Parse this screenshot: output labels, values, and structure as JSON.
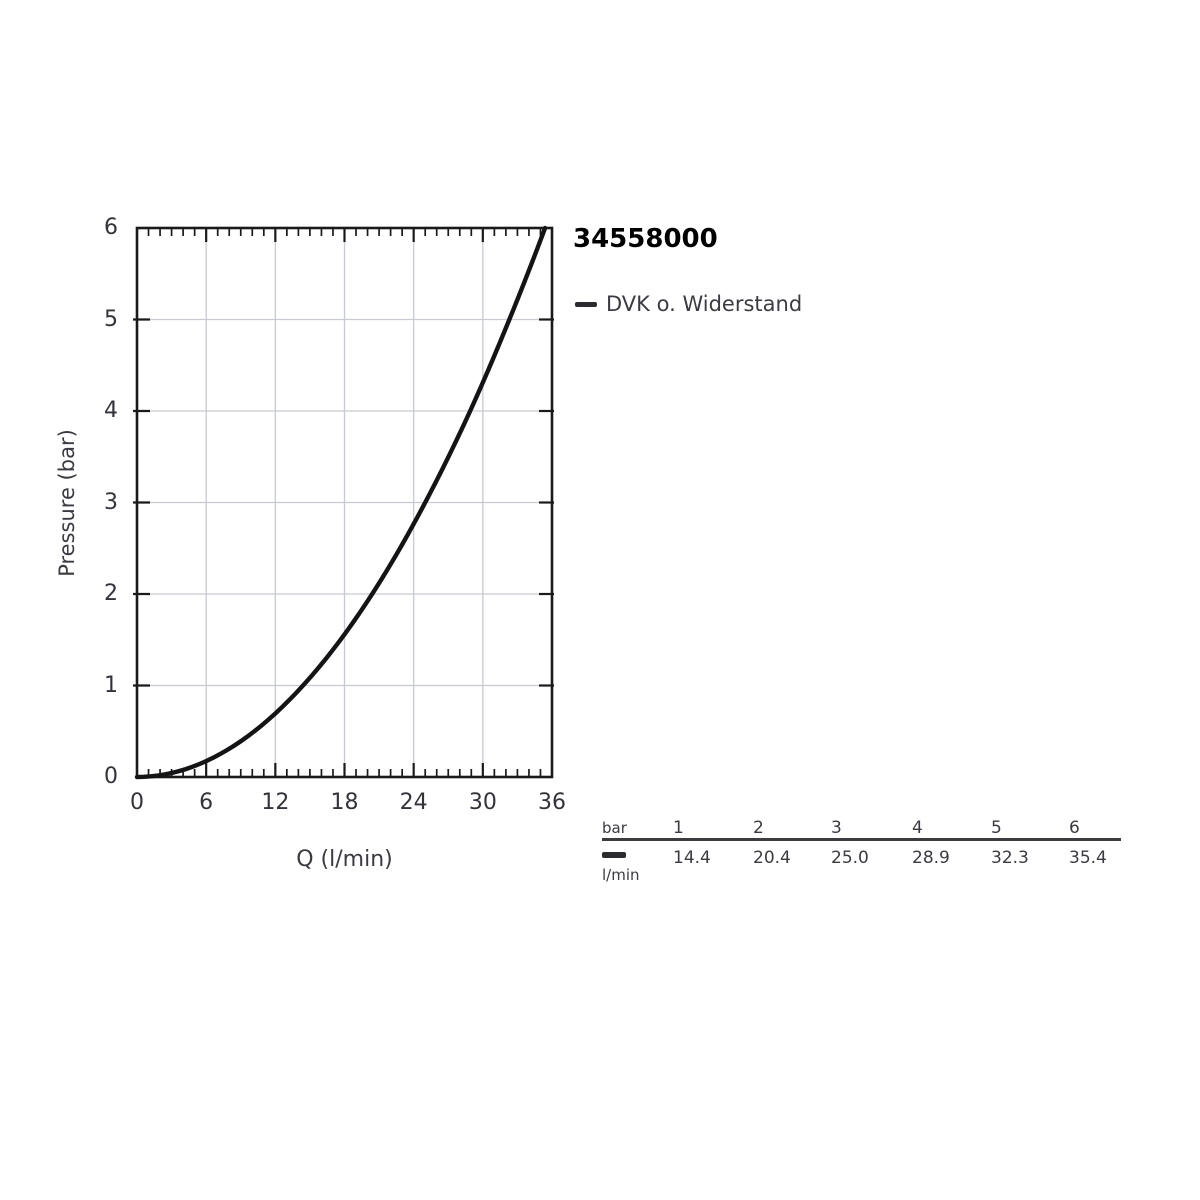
{
  "page": {
    "background": "#ffffff"
  },
  "chart_data": {
    "type": "line",
    "title": "34558000",
    "xlabel": "Q (l/min)",
    "ylabel": "Pressure (bar)",
    "xlim": [
      0,
      36
    ],
    "ylim": [
      0,
      6
    ],
    "x_major_ticks": [
      0,
      6,
      12,
      18,
      24,
      30,
      36
    ],
    "x_minor_tick_step": 1,
    "y_major_ticks": [
      0,
      1,
      2,
      3,
      4,
      5,
      6
    ],
    "grid": true,
    "legend": {
      "position": "outside-top-right",
      "entries": [
        {
          "label": "DVK o. Widerstand",
          "color": "#2b2b30"
        }
      ]
    },
    "series": [
      {
        "name": "DVK o. Widerstand",
        "color": "#141416",
        "points": [
          [
            0,
            0
          ],
          [
            14.4,
            1
          ],
          [
            20.4,
            2
          ],
          [
            25.0,
            3
          ],
          [
            28.9,
            4
          ],
          [
            32.3,
            5
          ],
          [
            35.4,
            6
          ]
        ]
      }
    ],
    "colors": {
      "grid": "#c7c9d3",
      "frame": "#1a1a1c",
      "tick": "#1a1a1c",
      "tick_label": "#33333b",
      "axis_label": "#3a3a42",
      "title": "#000000",
      "table_rule": "#3c3c40"
    }
  },
  "table": {
    "row1_header": "bar",
    "row2_header": "l/min",
    "pressures_bar": [
      "1",
      "2",
      "3",
      "4",
      "5",
      "6"
    ],
    "flows_lmin": [
      "14.4",
      "20.4",
      "25.0",
      "28.9",
      "32.3",
      "35.4"
    ]
  }
}
